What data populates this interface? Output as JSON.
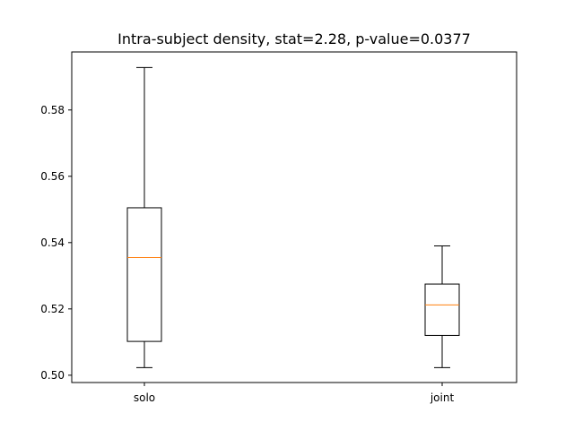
{
  "chart_data": {
    "type": "box",
    "title": "Intra-subject density, stat=2.28, p-value=0.0377",
    "xlabel": "",
    "ylabel": "",
    "categories": [
      "solo",
      "joint"
    ],
    "boxes": [
      {
        "label": "solo",
        "whislo": 0.5023,
        "q1": 0.5102,
        "med": 0.5355,
        "q3": 0.5505,
        "whishi": 0.5928
      },
      {
        "label": "joint",
        "whislo": 0.5023,
        "q1": 0.512,
        "med": 0.5212,
        "q3": 0.5275,
        "whishi": 0.539
      }
    ],
    "ylim": [
      0.4978,
      0.5975
    ],
    "yticks": [
      0.5,
      0.52,
      0.54,
      0.56,
      0.58
    ],
    "ytick_labels": [
      "0.50",
      "0.52",
      "0.54",
      "0.56",
      "0.58"
    ],
    "grid": false,
    "colors": {
      "box": "#000000",
      "median": "#ff7f0e",
      "axes": "#000000"
    }
  }
}
